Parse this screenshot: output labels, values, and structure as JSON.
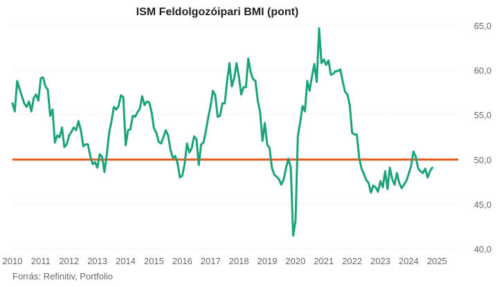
{
  "chart_data": {
    "type": "line",
    "title": "ISM Feldolgozóipari BMI (pont)",
    "source": "Forrás: Refinitiv, Portfolio",
    "ylim": [
      40,
      65
    ],
    "yticks": [
      "40,0",
      "45,0",
      "50,0",
      "55,0",
      "60,0",
      "65,0"
    ],
    "xticks": [
      "2010",
      "2011",
      "2012",
      "2013",
      "2014",
      "2015",
      "2016",
      "2017",
      "2018",
      "2019",
      "2020",
      "2021",
      "2022",
      "2023",
      "2024",
      "2025"
    ],
    "xlim": [
      2010.0,
      2025.75
    ],
    "reference_line": {
      "value": 50,
      "color": "#e8581c"
    },
    "series": [
      {
        "name": "ISM Feldolgozóipari BMI",
        "color": "#1aa37a",
        "x_start": 2010.0,
        "step": 0.0833333,
        "values": [
          56.3,
          55.4,
          58.8,
          57.9,
          57.1,
          56.3,
          55.9,
          56.5,
          55.4,
          56.9,
          57.3,
          56.6,
          59.1,
          59.2,
          58.2,
          57.8,
          54.9,
          55.6,
          51.9,
          52.7,
          52.5,
          53.6,
          51.4,
          51.7,
          52.7,
          53.1,
          53.6,
          53.3,
          54.3,
          53.3,
          51.5,
          51.7,
          51.7,
          50.4,
          49.5,
          49.7,
          49.1,
          50.6,
          50.3,
          48.6,
          50.6,
          53.0,
          54.3,
          55.9,
          55.6,
          56.0,
          57.2,
          57.0,
          51.6,
          53.3,
          53.4,
          54.9,
          54.8,
          55.3,
          55.7,
          57.1,
          56.1,
          56.5,
          56.4,
          55.3,
          53.5,
          53.0,
          52.0,
          51.8,
          52.5,
          53.3,
          52.7,
          51.1,
          50.2,
          50.4,
          49.6,
          48.0,
          48.2,
          49.5,
          51.8,
          50.8,
          51.3,
          52.6,
          52.3,
          49.4,
          51.7,
          51.9,
          53.2,
          54.7,
          56.0,
          57.7,
          57.2,
          54.8,
          54.9,
          56.3,
          56.3,
          58.8,
          60.8,
          58.2,
          59.1,
          60.8,
          59.3,
          57.3,
          58.1,
          58.1,
          61.3,
          59.8,
          59.0,
          58.8,
          56.6,
          55.3,
          52.1,
          54.1,
          51.7,
          51.3,
          49.1,
          48.3,
          48.1,
          47.8,
          47.2,
          47.8,
          49.1,
          50.1,
          49.1,
          41.5,
          43.1,
          52.6,
          54.2,
          56.0,
          55.4,
          58.8,
          57.7,
          59.3,
          60.7,
          58.7,
          64.7,
          60.8,
          61.2,
          60.6,
          61.1,
          59.5,
          59.6,
          59.9,
          59.9,
          60.1,
          58.8,
          57.6,
          57.3,
          56.1,
          53.0,
          52.8,
          52.8,
          50.2,
          49.0,
          48.4,
          47.7,
          47.4,
          46.3,
          47.1,
          46.9,
          46.4,
          47.6,
          46.9,
          48.7,
          46.7,
          49.1,
          47.8,
          47.2,
          48.5,
          47.4,
          46.8,
          47.2,
          47.6,
          48.4,
          49.3,
          50.9,
          50.3,
          49.0,
          48.7,
          48.5,
          49.0,
          48.0,
          48.7,
          49.1
        ]
      }
    ]
  }
}
